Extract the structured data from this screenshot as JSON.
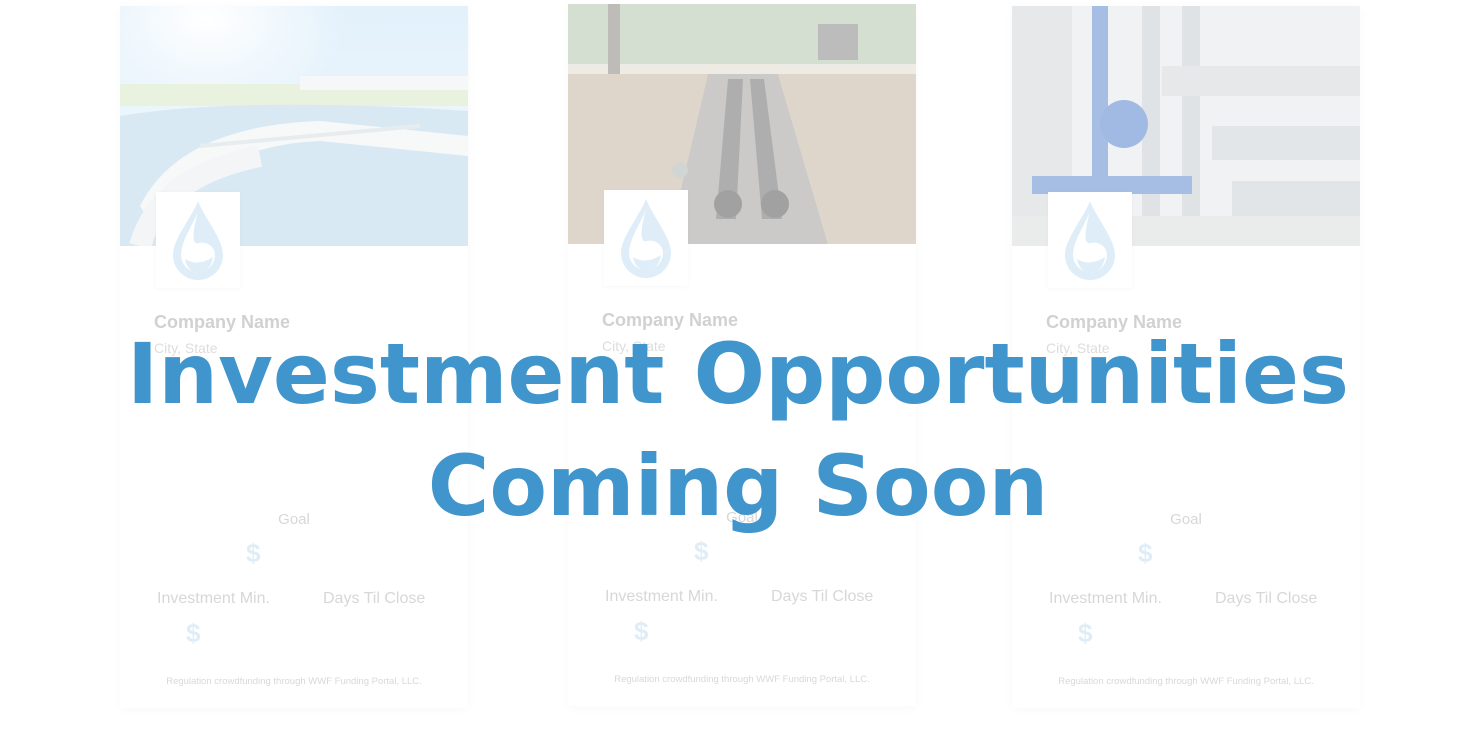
{
  "headline": {
    "line1": "Investment Opportunities",
    "line2": "Coming Soon"
  },
  "colors": {
    "accent": "#3f95cc",
    "logo_drop": "#b6d7ee"
  },
  "cards": [
    {
      "image": "water-treatment-clarifier-photo",
      "logo_icon": "water-drop-icon",
      "company_name": "Company Name",
      "location": "City, State",
      "goal_label": "Goal",
      "goal_value": "$",
      "investment_min_label": "Investment Min.",
      "investment_min_value": "$",
      "days_til_close_label": "Days Til Close",
      "disclaimer": "Regulation crowdfunding through WWF Funding Portal, LLC."
    },
    {
      "image": "pipeline-trench-photo",
      "logo_icon": "water-drop-icon",
      "company_name": "Company Name",
      "location": "City, State",
      "goal_label": "Goal",
      "goal_value": "$",
      "investment_min_label": "Investment Min.",
      "investment_min_value": "$",
      "days_til_close_label": "Days Til Close",
      "disclaimer": "Regulation crowdfunding through WWF Funding Portal, LLC."
    },
    {
      "image": "pump-station-pipes-photo",
      "logo_icon": "water-drop-icon",
      "company_name": "Company Name",
      "location": "City, State",
      "goal_label": "Goal",
      "goal_value": "$",
      "investment_min_label": "Investment Min.",
      "investment_min_value": "$",
      "days_til_close_label": "Days Til Close",
      "disclaimer": "Regulation crowdfunding through WWF Funding Portal, LLC."
    }
  ]
}
